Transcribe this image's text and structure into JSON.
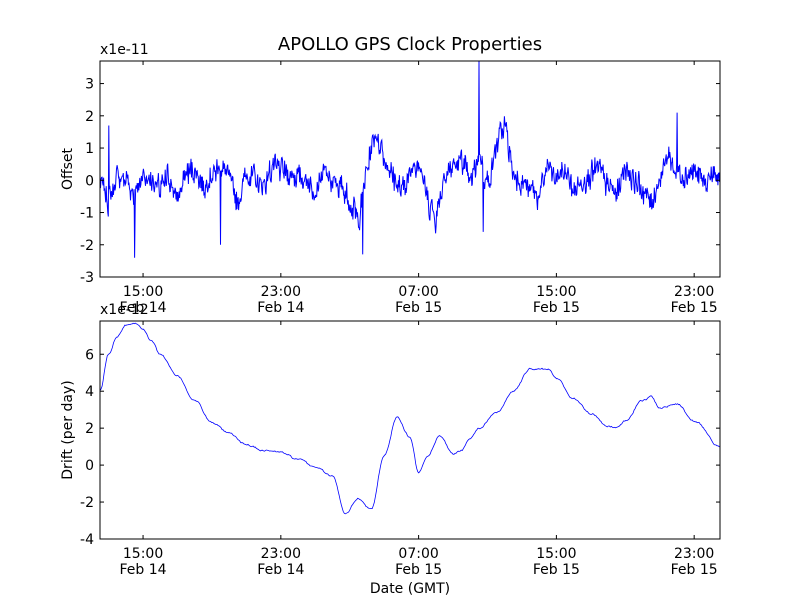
{
  "figure": {
    "title": "APOLLO GPS Clock Properties"
  },
  "chart_data": [
    {
      "type": "line",
      "title": "",
      "xlabel": "",
      "ylabel": "Offset",
      "y_multiplier": "x1e-11",
      "xlim": [
        "2011-02-14 12:30",
        "2011-02-16 00:30"
      ],
      "ylim": [
        -3,
        3.7
      ],
      "yticks": [
        -3,
        -2,
        -1,
        0,
        1,
        2,
        3
      ],
      "xticks": [
        {
          "at": "2011-02-14 15:00",
          "line1": "15:00",
          "line2": "Feb 14"
        },
        {
          "at": "2011-02-14 23:00",
          "line1": "23:00",
          "line2": "Feb 14"
        },
        {
          "at": "2011-02-15 07:00",
          "line1": "07:00",
          "line2": "Feb 15"
        },
        {
          "at": "2011-02-15 15:00",
          "line1": "15:00",
          "line2": "Feb 15"
        },
        {
          "at": "2011-02-15 23:00",
          "line1": "23:00",
          "line2": "Feb 15"
        }
      ],
      "grid": false,
      "series": [
        {
          "color": "#0000ff",
          "x": [
            "2011-02-14 12:30",
            "2011-02-14 13:00",
            "2011-02-14 13:30",
            "2011-02-14 14:00",
            "2011-02-14 14:30",
            "2011-02-14 15:00",
            "2011-02-14 15:30",
            "2011-02-14 16:00",
            "2011-02-14 16:30",
            "2011-02-14 17:00",
            "2011-02-14 17:30",
            "2011-02-14 18:00",
            "2011-02-14 18:30",
            "2011-02-14 19:00",
            "2011-02-14 19:30",
            "2011-02-14 20:00",
            "2011-02-14 20:30",
            "2011-02-14 21:00",
            "2011-02-14 21:30",
            "2011-02-14 22:00",
            "2011-02-14 22:30",
            "2011-02-14 23:00",
            "2011-02-14 23:30",
            "2011-02-15 00:00",
            "2011-02-15 00:30",
            "2011-02-15 01:00",
            "2011-02-15 01:30",
            "2011-02-15 02:00",
            "2011-02-15 02:30",
            "2011-02-15 03:00",
            "2011-02-15 03:30",
            "2011-02-15 04:00",
            "2011-02-15 04:30",
            "2011-02-15 05:00",
            "2011-02-15 05:30",
            "2011-02-15 06:00",
            "2011-02-15 06:30",
            "2011-02-15 07:00",
            "2011-02-15 07:30",
            "2011-02-15 08:00",
            "2011-02-15 08:30",
            "2011-02-15 09:00",
            "2011-02-15 09:30",
            "2011-02-15 10:00",
            "2011-02-15 10:30",
            "2011-02-15 11:00",
            "2011-02-15 11:30",
            "2011-02-15 12:00",
            "2011-02-15 12:30",
            "2011-02-15 13:00",
            "2011-02-15 13:30",
            "2011-02-15 14:00",
            "2011-02-15 14:30",
            "2011-02-15 15:00",
            "2011-02-15 15:30",
            "2011-02-15 16:00",
            "2011-02-15 16:30",
            "2011-02-15 17:00",
            "2011-02-15 17:30",
            "2011-02-15 18:00",
            "2011-02-15 18:30",
            "2011-02-15 19:00",
            "2011-02-15 19:30",
            "2011-02-15 20:00",
            "2011-02-15 20:30",
            "2011-02-15 21:00",
            "2011-02-15 21:30",
            "2011-02-15 22:00",
            "2011-02-15 22:30",
            "2011-02-15 23:00",
            "2011-02-15 23:30",
            "2011-02-16 00:00",
            "2011-02-16 00:30"
          ],
          "y": [
            0.0,
            -0.7,
            0.1,
            0.0,
            -0.4,
            0.2,
            0.0,
            -0.3,
            0.1,
            -0.6,
            0.2,
            0.4,
            -0.2,
            0.2,
            0.4,
            0.1,
            -0.8,
            0.3,
            0.0,
            -0.2,
            0.4,
            0.3,
            0.2,
            0.1,
            0.0,
            -0.3,
            0.2,
            -0.1,
            -0.2,
            -0.6,
            -1.3,
            0.4,
            1.4,
            0.8,
            0.1,
            -0.3,
            0.2,
            0.7,
            -0.6,
            -1.2,
            0.2,
            0.4,
            0.7,
            -0.2,
            0.8,
            -0.1,
            1.0,
            1.8,
            0.2,
            0.0,
            -0.3,
            -0.5,
            0.4,
            0.0,
            0.3,
            -0.4,
            0.0,
            0.2,
            0.3,
            -0.2,
            -0.4,
            0.5,
            0.0,
            -0.3,
            -0.7,
            0.0,
            0.8,
            0.3,
            0.2,
            0.3,
            -0.1,
            0.2,
            0.0
          ]
        }
      ]
    },
    {
      "type": "line",
      "title": "",
      "xlabel": "Date (GMT)",
      "ylabel": "Drift (per day)",
      "y_multiplier": "x1e-12",
      "xlim": [
        "2011-02-14 12:30",
        "2011-02-16 00:30"
      ],
      "ylim": [
        -4,
        7.8
      ],
      "yticks": [
        -4,
        -2,
        0,
        2,
        4,
        6
      ],
      "xticks": [
        {
          "at": "2011-02-14 15:00",
          "line1": "15:00",
          "line2": "Feb 14"
        },
        {
          "at": "2011-02-14 23:00",
          "line1": "23:00",
          "line2": "Feb 14"
        },
        {
          "at": "2011-02-15 07:00",
          "line1": "07:00",
          "line2": "Feb 15"
        },
        {
          "at": "2011-02-15 15:00",
          "line1": "15:00",
          "line2": "Feb 15"
        },
        {
          "at": "2011-02-15 23:00",
          "line1": "23:00",
          "line2": "Feb 15"
        }
      ],
      "grid": false,
      "series": [
        {
          "color": "#0000ff",
          "x": [
            "2011-02-14 12:30",
            "2011-02-14 13:00",
            "2011-02-14 13:30",
            "2011-02-14 14:00",
            "2011-02-14 14:30",
            "2011-02-14 15:00",
            "2011-02-14 15:30",
            "2011-02-14 16:00",
            "2011-02-14 17:00",
            "2011-02-14 18:00",
            "2011-02-14 19:00",
            "2011-02-14 20:00",
            "2011-02-14 21:00",
            "2011-02-14 22:00",
            "2011-02-14 23:00",
            "2011-02-15 00:00",
            "2011-02-15 01:00",
            "2011-02-15 02:00",
            "2011-02-15 02:45",
            "2011-02-15 03:30",
            "2011-02-15 04:15",
            "2011-02-15 05:00",
            "2011-02-15 05:45",
            "2011-02-15 06:30",
            "2011-02-15 07:00",
            "2011-02-15 07:30",
            "2011-02-15 08:15",
            "2011-02-15 09:00",
            "2011-02-15 09:30",
            "2011-02-15 10:00",
            "2011-02-15 10:30",
            "2011-02-15 11:30",
            "2011-02-15 12:30",
            "2011-02-15 13:30",
            "2011-02-15 14:30",
            "2011-02-15 15:00",
            "2011-02-15 16:00",
            "2011-02-15 17:00",
            "2011-02-15 18:00",
            "2011-02-15 18:30",
            "2011-02-15 19:00",
            "2011-02-15 20:00",
            "2011-02-15 20:30",
            "2011-02-15 21:00",
            "2011-02-15 22:00",
            "2011-02-15 23:00",
            "2011-02-16 00:30"
          ],
          "y": [
            4.0,
            6.0,
            7.0,
            7.6,
            7.7,
            7.4,
            6.7,
            6.0,
            4.8,
            3.5,
            2.3,
            1.7,
            1.1,
            0.8,
            0.7,
            0.3,
            -0.1,
            -0.6,
            -2.6,
            -1.8,
            -2.4,
            0.5,
            2.6,
            1.5,
            -0.4,
            0.5,
            1.6,
            0.6,
            0.8,
            1.5,
            2.0,
            2.8,
            4.0,
            5.2,
            5.2,
            4.7,
            3.6,
            2.8,
            2.1,
            2.0,
            2.4,
            3.5,
            3.7,
            3.1,
            3.3,
            2.4,
            1.0
          ]
        }
      ]
    }
  ]
}
